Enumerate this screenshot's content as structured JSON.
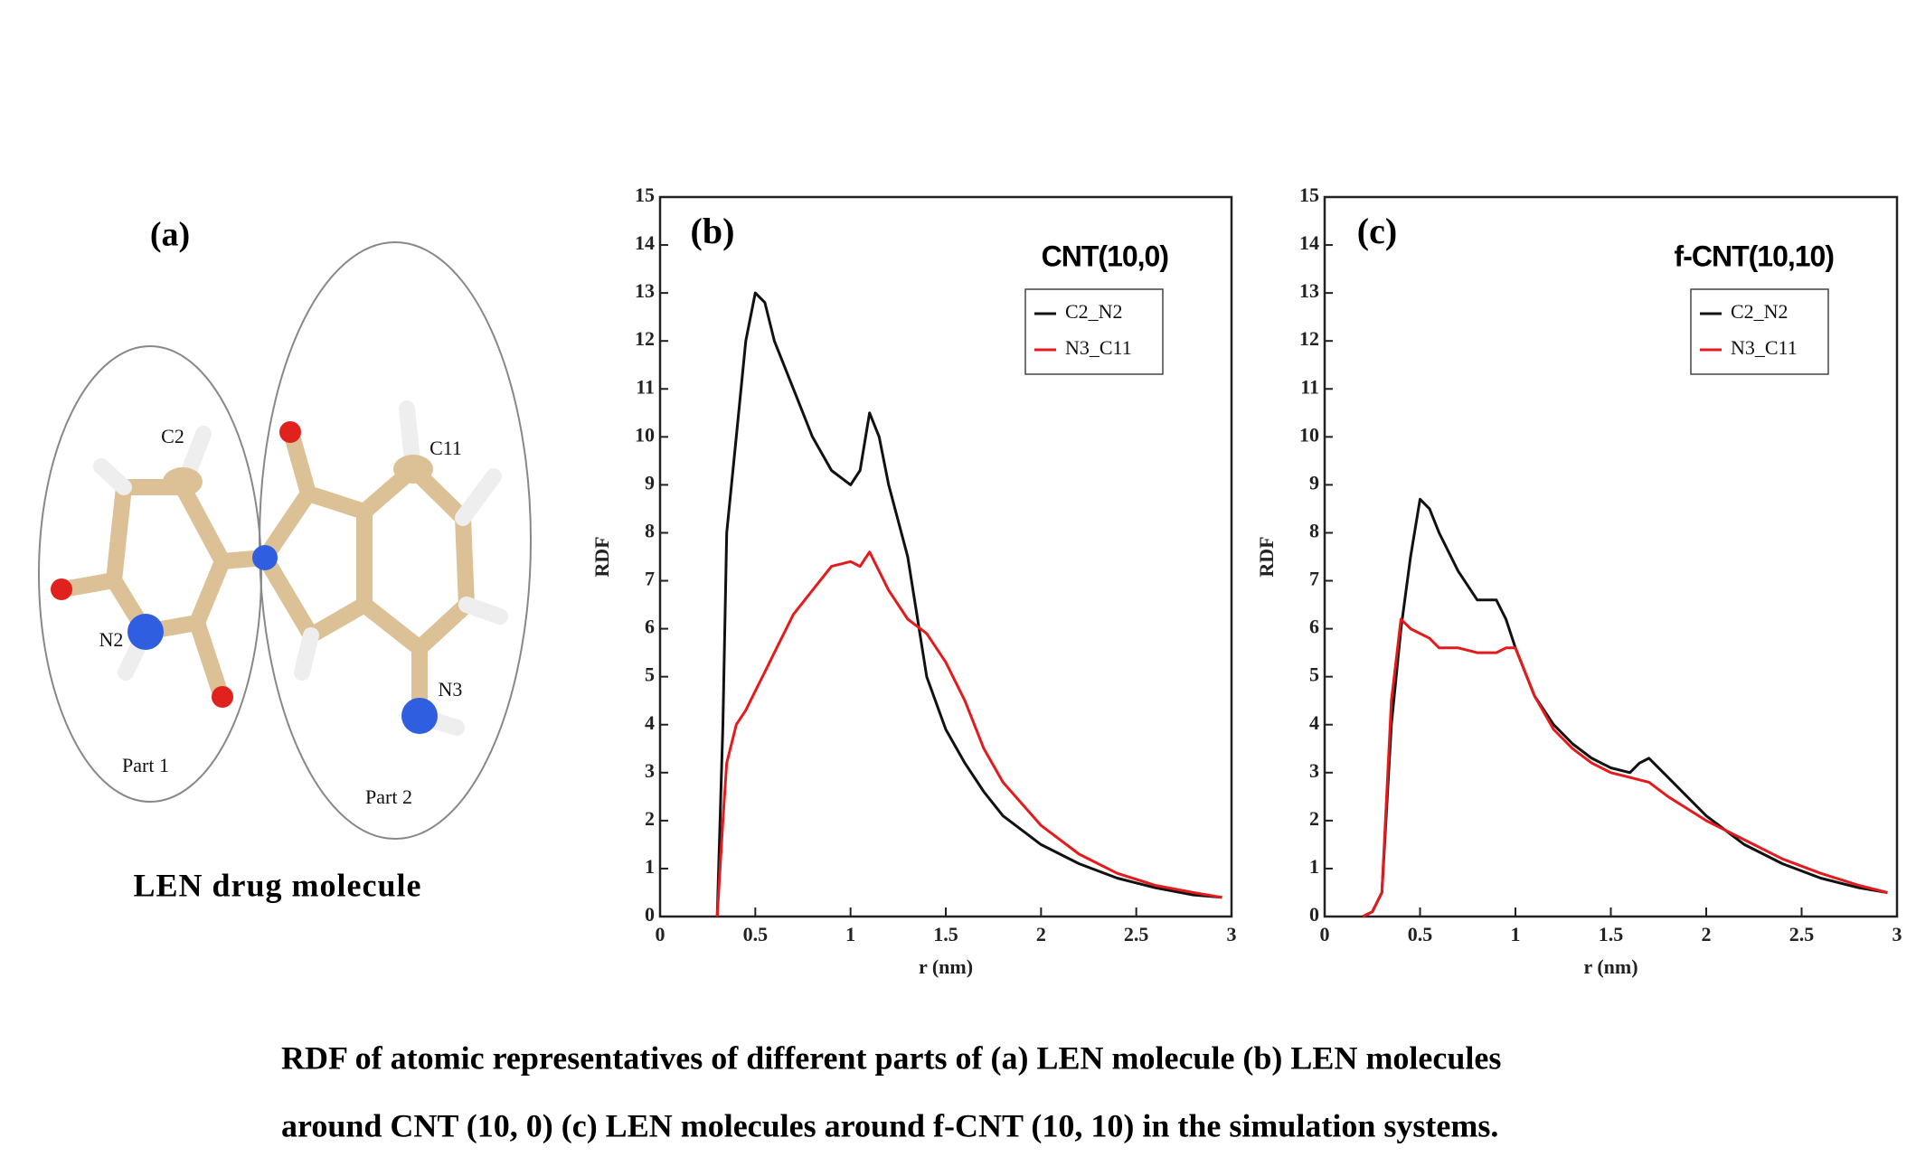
{
  "panel_a": {
    "label": "(a)",
    "title": "LEN drug molecule",
    "atom_labels": [
      "C2",
      "C11",
      "N2",
      "N3"
    ],
    "parts": [
      "Part 1",
      "Part 2"
    ]
  },
  "chart_data": [
    {
      "type": "line",
      "panel": "(b)",
      "title": "CNT(10,0)",
      "x_label": "r (nm)",
      "y_label": "RDF",
      "xlim": [
        0,
        3
      ],
      "ylim": [
        0,
        15
      ],
      "xticks": [
        0,
        0.5,
        1,
        1.5,
        2,
        2.5,
        3
      ],
      "yticks": [
        0,
        1,
        2,
        3,
        4,
        5,
        6,
        7,
        8,
        9,
        10,
        11,
        12,
        13,
        14,
        15
      ],
      "x": [
        0.3,
        0.33,
        0.35,
        0.4,
        0.45,
        0.5,
        0.55,
        0.6,
        0.7,
        0.8,
        0.9,
        1.0,
        1.05,
        1.1,
        1.15,
        1.2,
        1.3,
        1.4,
        1.5,
        1.6,
        1.7,
        1.8,
        2.0,
        2.2,
        2.4,
        2.6,
        2.8,
        2.95
      ],
      "series": [
        {
          "name": "C2_N2",
          "color": "#111111",
          "values": [
            0,
            4,
            8,
            10,
            12,
            13,
            12.8,
            12,
            11,
            10,
            9.3,
            9,
            9.3,
            10.5,
            10,
            9,
            7.5,
            5,
            3.9,
            3.2,
            2.6,
            2.1,
            1.5,
            1.1,
            0.8,
            0.6,
            0.45,
            0.4
          ]
        },
        {
          "name": "N3_C11",
          "color": "#e41a1c",
          "values": [
            0,
            2,
            3.2,
            4,
            4.3,
            4.7,
            5.1,
            5.5,
            6.3,
            6.8,
            7.3,
            7.4,
            7.3,
            7.6,
            7.2,
            6.8,
            6.2,
            5.9,
            5.3,
            4.5,
            3.5,
            2.8,
            1.9,
            1.3,
            0.9,
            0.65,
            0.5,
            0.4
          ]
        }
      ]
    },
    {
      "type": "line",
      "panel": "(c)",
      "title": "f-CNT(10,10)",
      "x_label": "r (nm)",
      "y_label": "RDF",
      "xlim": [
        0,
        3
      ],
      "ylim": [
        0,
        15
      ],
      "xticks": [
        0,
        0.5,
        1,
        1.5,
        2,
        2.5,
        3
      ],
      "yticks": [
        0,
        1,
        2,
        3,
        4,
        5,
        6,
        7,
        8,
        9,
        10,
        11,
        12,
        13,
        14,
        15
      ],
      "x": [
        0.2,
        0.25,
        0.3,
        0.35,
        0.4,
        0.45,
        0.5,
        0.55,
        0.6,
        0.7,
        0.8,
        0.9,
        0.95,
        1.0,
        1.1,
        1.2,
        1.3,
        1.4,
        1.5,
        1.6,
        1.65,
        1.7,
        1.8,
        2.0,
        2.2,
        2.4,
        2.6,
        2.8,
        2.95
      ],
      "series": [
        {
          "name": "C2_N2",
          "color": "#111111",
          "values": [
            0,
            0.1,
            0.5,
            4,
            6,
            7.5,
            8.7,
            8.5,
            8,
            7.2,
            6.6,
            6.6,
            6.2,
            5.6,
            4.6,
            4.0,
            3.6,
            3.3,
            3.1,
            3.0,
            3.2,
            3.3,
            2.9,
            2.1,
            1.5,
            1.1,
            0.8,
            0.6,
            0.5
          ]
        },
        {
          "name": "N3_C11",
          "color": "#e41a1c",
          "values": [
            0,
            0.1,
            0.5,
            4.5,
            6.2,
            6.0,
            5.9,
            5.8,
            5.6,
            5.6,
            5.5,
            5.5,
            5.6,
            5.6,
            4.6,
            3.9,
            3.5,
            3.2,
            3.0,
            2.9,
            2.85,
            2.8,
            2.5,
            2.0,
            1.6,
            1.2,
            0.9,
            0.65,
            0.5
          ]
        }
      ]
    }
  ],
  "caption": [
    "RDF of atomic representatives of different parts of (a) LEN molecule (b) LEN molecules",
    "around CNT (10, 0) (c) LEN molecules around f-CNT (10, 10) in the simulation systems."
  ]
}
